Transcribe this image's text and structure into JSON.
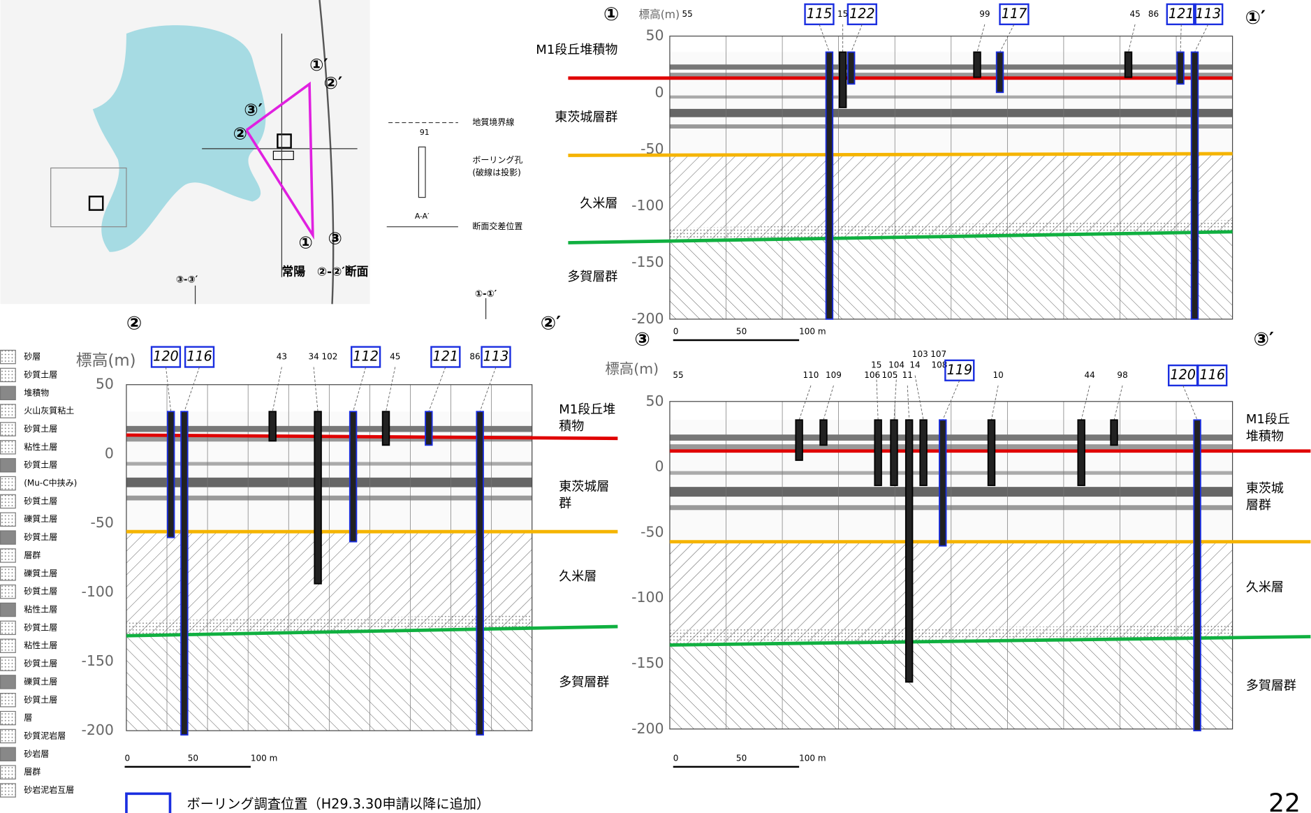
{
  "map": {
    "labels": [
      "①′",
      "②′",
      "③′",
      "②",
      "①",
      "③",
      "常陽　②-②′断面",
      "③-③′",
      "①-①′"
    ],
    "key": [
      "地質境界線",
      "91",
      "ボーリング孔",
      "(破線は投影)",
      "A-A′",
      "断面交差位置"
    ]
  },
  "legend": [
    "砂層",
    "砂質土層",
    "堆積物",
    "火山灰質粘土",
    "砂質土層",
    "粘性土層",
    "砂質土層",
    "(Mu-C中挟み)",
    "砂質土層",
    "礫質土層",
    "砂質土層",
    "層群",
    "礫質土層",
    "砂質土層",
    "粘性土層",
    "砂質土層",
    "粘性土層",
    "砂質土層",
    "礫質土層",
    "砂質土層",
    "層",
    "砂質泥岩層",
    "砂岩層",
    "層群",
    "砂岩泥岩互層"
  ],
  "sections": [
    {
      "start": "①",
      "end": "①′",
      "axis_title": "標高(m)",
      "ticks": [
        "50",
        "0",
        "-50",
        "-100",
        "-150",
        "-200"
      ],
      "formations": [
        [
          "M1段丘堆積物"
        ],
        [
          "東茨城層群"
        ],
        [
          "久米層"
        ],
        [
          "多賀層群"
        ]
      ],
      "boreholes": [
        {
          "label": "55",
          "boxed": false
        },
        {
          "label": "115",
          "boxed": true
        },
        {
          "label": "15",
          "boxed": false
        },
        {
          "label": "122",
          "boxed": true
        },
        {
          "label": "99",
          "boxed": false
        },
        {
          "label": "117",
          "boxed": true
        },
        {
          "label": "45",
          "boxed": false
        },
        {
          "label": "86",
          "boxed": false
        },
        {
          "label": "121",
          "boxed": true
        },
        {
          "label": "113",
          "boxed": true
        }
      ],
      "scale": [
        "0",
        "50",
        "100 m"
      ]
    },
    {
      "start": "②",
      "end": "②′",
      "axis_title": "標高(m)",
      "ticks": [
        "50",
        "0",
        "-50",
        "-100",
        "-150",
        "-200"
      ],
      "formations": [
        [
          "M1段丘堆",
          "積物"
        ],
        [
          "東茨城層",
          "群"
        ],
        [
          "久米層"
        ],
        [
          "多賀層群"
        ]
      ],
      "boreholes": [
        {
          "label": "120",
          "boxed": true
        },
        {
          "label": "116",
          "boxed": true
        },
        {
          "label": "43",
          "boxed": false
        },
        {
          "label": "34",
          "boxed": false
        },
        {
          "label": "102",
          "boxed": false
        },
        {
          "label": "112",
          "boxed": true
        },
        {
          "label": "45",
          "boxed": false
        },
        {
          "label": "121",
          "boxed": true
        },
        {
          "label": "86",
          "boxed": false
        },
        {
          "label": "113",
          "boxed": true
        }
      ],
      "scale": [
        "0",
        "50",
        "100 m"
      ]
    },
    {
      "start": "③",
      "end": "③′",
      "axis_title": "標高(m)",
      "ticks": [
        "50",
        "0",
        "-50",
        "-100",
        "-150",
        "-200"
      ],
      "formations": [
        [
          "M1段丘",
          "堆積物"
        ],
        [
          "東茨城",
          "層群"
        ],
        [
          "久米層"
        ],
        [
          "多賀層群"
        ]
      ],
      "boreholes": [
        {
          "label": "55",
          "boxed": false
        },
        {
          "label": "110",
          "boxed": false
        },
        {
          "label": "109",
          "boxed": false
        },
        {
          "label": "15",
          "boxed": false
        },
        {
          "label": "104",
          "boxed": false
        },
        {
          "label": "106",
          "boxed": false
        },
        {
          "label": "105",
          "boxed": false
        },
        {
          "label": "11",
          "boxed": false
        },
        {
          "label": "103",
          "boxed": false
        },
        {
          "label": "107",
          "boxed": false
        },
        {
          "label": "14",
          "boxed": false
        },
        {
          "label": "108",
          "boxed": false
        },
        {
          "label": "119",
          "boxed": true
        },
        {
          "label": "10",
          "boxed": false
        },
        {
          "label": "44",
          "boxed": false
        },
        {
          "label": "98",
          "boxed": false
        },
        {
          "label": "120",
          "boxed": true
        },
        {
          "label": "116",
          "boxed": true
        }
      ],
      "scale": [
        "0",
        "50",
        "100 m"
      ]
    }
  ],
  "footer": {
    "note": "ボーリング調査位置（H29.3.30申請以降に追加）",
    "page": "22"
  }
}
